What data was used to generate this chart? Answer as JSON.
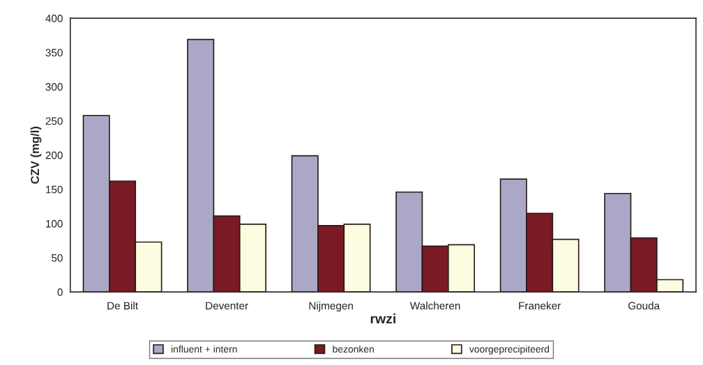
{
  "chart_data": {
    "type": "bar",
    "xlabel": "rwzi",
    "ylabel": "CZV (mg/l)",
    "categories": [
      "De Bilt",
      "Deventer",
      "Nijmegen",
      "Walcheren",
      "Franeker",
      "Gouda"
    ],
    "series": [
      {
        "name": "influent + intern",
        "color": "#aaa8c6",
        "values": [
          258,
          369,
          199,
          146,
          165,
          144
        ]
      },
      {
        "name": "bezonken",
        "color": "#7a1a24",
        "values": [
          162,
          111,
          97,
          67,
          115,
          79
        ]
      },
      {
        "name": "voorgeprecipiteerd",
        "color": "#fcfce0",
        "values": [
          73,
          99,
          99,
          69,
          77,
          18
        ]
      }
    ],
    "ylim": [
      0,
      400
    ],
    "yticks": [
      0,
      50,
      100,
      150,
      200,
      250,
      300,
      350,
      400
    ],
    "grid": false,
    "legend": "bottom"
  }
}
